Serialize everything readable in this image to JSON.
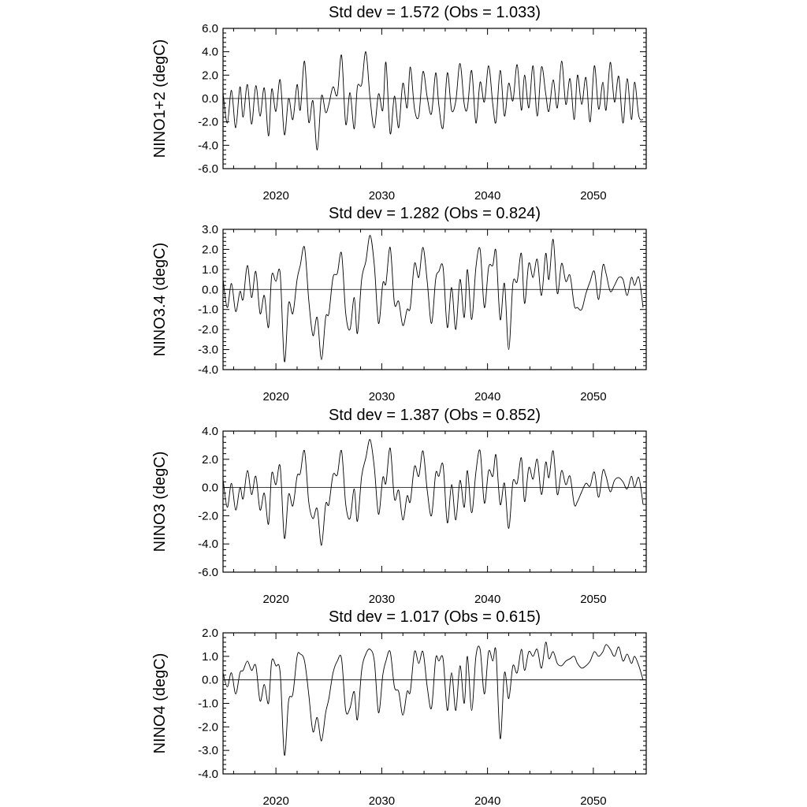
{
  "chart_data": [
    {
      "type": "line",
      "title": "Std dev = 1.572 (Obs = 1.033)",
      "ylabel": "NINO1+2 (degC)",
      "xlim": [
        2015,
        2055
      ],
      "ylim": [
        -6,
        6
      ],
      "yticks": [
        "6.0",
        "4.0",
        "2.0",
        "0.0",
        "-2.0",
        "-4.0",
        "-6.0"
      ],
      "xticks": [
        "2020",
        "2030",
        "2040",
        "2050"
      ],
      "reference_line": 0,
      "x": [
        2015.0,
        2015.4,
        2015.8,
        2016.2,
        2016.6,
        2016.9,
        2017.3,
        2017.7,
        2018.1,
        2018.5,
        2018.9,
        2019.3,
        2019.6,
        2020.0,
        2020.4,
        2020.8,
        2021.2,
        2021.6,
        2022.0,
        2022.3,
        2022.7,
        2023.1,
        2023.5,
        2023.9,
        2024.3,
        2024.7,
        2025.0,
        2025.4,
        2025.8,
        2026.2,
        2026.6,
        2027.0,
        2027.4,
        2027.7,
        2028.1,
        2028.5,
        2028.9,
        2029.3,
        2029.7,
        2030.1,
        2030.4,
        2030.8,
        2031.2,
        2031.6,
        2032.0,
        2032.4,
        2032.7,
        2033.1,
        2033.5,
        2033.9,
        2034.3,
        2034.7,
        2035.1,
        2035.4,
        2035.8,
        2036.2,
        2036.6,
        2037.0,
        2037.4,
        2037.8,
        2038.1,
        2038.5,
        2038.9,
        2039.3,
        2039.7,
        2040.1,
        2040.5,
        2040.8,
        2041.2,
        2041.6,
        2042.0,
        2042.4,
        2042.8,
        2043.2,
        2043.5,
        2043.9,
        2044.3,
        2044.7,
        2045.1,
        2045.5,
        2045.8,
        2046.2,
        2046.6,
        2047.0,
        2047.4,
        2047.8,
        2048.2,
        2048.5,
        2048.9,
        2049.3,
        2049.7,
        2050.1,
        2050.5,
        2050.9,
        2051.2,
        2051.6,
        2052.0,
        2052.4,
        2052.8,
        2053.2,
        2053.6,
        2053.9,
        2054.3,
        2054.7
      ],
      "values": [
        0.5,
        -2.1,
        0.7,
        -2.5,
        1.0,
        -1.6,
        1.2,
        -2.2,
        1.1,
        -1.5,
        0.9,
        -3.2,
        0.8,
        -1.1,
        1.6,
        -3.1,
        0.0,
        -1.8,
        1.2,
        -1.0,
        3.2,
        -2.0,
        -0.2,
        -4.4,
        0.2,
        -1.2,
        -0.5,
        1.0,
        0.3,
        3.7,
        -2.2,
        0.5,
        -2.6,
        1.0,
        1.2,
        4.0,
        0.0,
        -2.5,
        0.4,
        -1.0,
        3.1,
        -3.0,
        0.2,
        -2.5,
        1.3,
        -0.8,
        2.7,
        -0.9,
        -1.5,
        2.3,
        0.1,
        -1.3,
        2.2,
        -0.6,
        -2.5,
        2.2,
        -1.0,
        -0.2,
        3.0,
        -0.5,
        -0.8,
        2.4,
        -2.1,
        1.4,
        -0.3,
        2.8,
        -0.5,
        -2.0,
        2.4,
        -1.5,
        1.3,
        -0.2,
        2.9,
        -1.0,
        2.0,
        -0.8,
        2.8,
        -1.5,
        2.7,
        0.4,
        -1.1,
        1.6,
        -0.8,
        3.2,
        -0.5,
        1.7,
        -1.8,
        2.0,
        -0.5,
        1.8,
        -2.0,
        2.8,
        -0.9,
        1.4,
        -1.0,
        3.1,
        -0.3,
        1.9,
        -2.1,
        1.7,
        -1.8,
        1.4,
        -1.5,
        -1.8
      ]
    },
    {
      "type": "line",
      "title": "Std dev = 1.282 (Obs = 0.824)",
      "ylabel": "NINO3.4 (degC)",
      "xlim": [
        2015,
        2055
      ],
      "ylim": [
        -4,
        3
      ],
      "yticks": [
        "3.0",
        "2.0",
        "1.0",
        "0.0",
        "-1.0",
        "-2.0",
        "-3.0",
        "-4.0"
      ],
      "xticks": [
        "2020",
        "2030",
        "2040",
        "2050"
      ],
      "reference_line": 0,
      "x": [
        2015.0,
        2015.4,
        2015.8,
        2016.2,
        2016.6,
        2016.9,
        2017.3,
        2017.7,
        2018.1,
        2018.5,
        2018.9,
        2019.3,
        2019.6,
        2020.0,
        2020.4,
        2020.8,
        2021.2,
        2021.6,
        2022.0,
        2022.3,
        2022.7,
        2023.1,
        2023.5,
        2023.9,
        2024.3,
        2024.7,
        2025.0,
        2025.4,
        2025.8,
        2026.2,
        2026.6,
        2027.0,
        2027.4,
        2027.7,
        2028.1,
        2028.5,
        2028.9,
        2029.3,
        2029.7,
        2030.1,
        2030.4,
        2030.8,
        2031.2,
        2031.6,
        2032.0,
        2032.4,
        2032.7,
        2033.1,
        2033.5,
        2033.9,
        2034.3,
        2034.7,
        2035.1,
        2035.4,
        2035.8,
        2036.2,
        2036.6,
        2037.0,
        2037.4,
        2037.8,
        2038.1,
        2038.5,
        2038.9,
        2039.3,
        2039.7,
        2040.1,
        2040.5,
        2040.8,
        2041.2,
        2041.6,
        2042.0,
        2042.4,
        2042.8,
        2043.2,
        2043.5,
        2043.9,
        2044.3,
        2044.7,
        2045.1,
        2045.5,
        2045.8,
        2046.2,
        2046.6,
        2047.0,
        2047.4,
        2047.8,
        2048.2,
        2048.5,
        2048.9,
        2049.3,
        2049.7,
        2050.1,
        2050.5,
        2050.9,
        2051.2,
        2051.6,
        2052.0,
        2052.4,
        2052.8,
        2053.2,
        2053.6,
        2053.9,
        2054.3,
        2054.7
      ],
      "values": [
        0.5,
        -0.9,
        0.3,
        -1.1,
        -0.1,
        -0.5,
        1.2,
        -0.4,
        0.9,
        -1.2,
        -0.3,
        -1.9,
        0.7,
        0.4,
        0.8,
        -3.6,
        -0.7,
        -1.2,
        0.5,
        1.2,
        2.1,
        -0.5,
        -2.3,
        -1.4,
        -3.5,
        -1.4,
        -1.2,
        0.6,
        0.8,
        1.8,
        -1.2,
        -2.0,
        -0.4,
        -2.2,
        0.5,
        1.4,
        2.7,
        1.2,
        -1.7,
        0.3,
        0.3,
        2.1,
        -0.7,
        -0.6,
        -1.8,
        -1.0,
        -0.9,
        1.3,
        0.6,
        2.1,
        0.4,
        -1.7,
        0.5,
        0.9,
        1.1,
        -1.9,
        0.1,
        -2.0,
        0.5,
        -1.4,
        1.0,
        -1.5,
        1.1,
        2.0,
        -0.9,
        1.1,
        1.2,
        1.9,
        -1.5,
        0.3,
        -3.0,
        0.3,
        0.4,
        1.8,
        -0.7,
        1.3,
        0.6,
        1.5,
        -0.3,
        1.8,
        0.5,
        2.5,
        -0.2,
        1.3,
        0.4,
        0.7,
        -0.8,
        -0.9,
        -1.0,
        -0.2,
        0.4,
        0.9,
        -0.5,
        1.2,
        0.8,
        -0.1,
        0.2,
        0.6,
        0.5,
        -0.3,
        0.6,
        0.2,
        0.6,
        -0.9
      ]
    },
    {
      "type": "line",
      "title": "Std dev = 1.387 (Obs = 0.852)",
      "ylabel": "NINO3 (degC)",
      "xlim": [
        2015,
        2055
      ],
      "ylim": [
        -6,
        4
      ],
      "yticks": [
        "4.0",
        "2.0",
        "0.0",
        "-2.0",
        "-4.0",
        "-6.0"
      ],
      "xticks": [
        "2020",
        "2030",
        "2040",
        "2050"
      ],
      "reference_line": 0,
      "x": [
        2015.0,
        2015.4,
        2015.8,
        2016.2,
        2016.6,
        2016.9,
        2017.3,
        2017.7,
        2018.1,
        2018.5,
        2018.9,
        2019.3,
        2019.6,
        2020.0,
        2020.4,
        2020.8,
        2021.2,
        2021.6,
        2022.0,
        2022.3,
        2022.7,
        2023.1,
        2023.5,
        2023.9,
        2024.3,
        2024.7,
        2025.0,
        2025.4,
        2025.8,
        2026.2,
        2026.6,
        2027.0,
        2027.4,
        2027.7,
        2028.1,
        2028.5,
        2028.9,
        2029.3,
        2029.7,
        2030.1,
        2030.4,
        2030.8,
        2031.2,
        2031.6,
        2032.0,
        2032.4,
        2032.7,
        2033.1,
        2033.5,
        2033.9,
        2034.3,
        2034.7,
        2035.1,
        2035.4,
        2035.8,
        2036.2,
        2036.6,
        2037.0,
        2037.4,
        2037.8,
        2038.1,
        2038.5,
        2038.9,
        2039.3,
        2039.7,
        2040.1,
        2040.5,
        2040.8,
        2041.2,
        2041.6,
        2042.0,
        2042.4,
        2042.8,
        2043.2,
        2043.5,
        2043.9,
        2044.3,
        2044.7,
        2045.1,
        2045.5,
        2045.8,
        2046.2,
        2046.6,
        2047.0,
        2047.4,
        2047.8,
        2048.2,
        2048.5,
        2048.9,
        2049.3,
        2049.7,
        2050.1,
        2050.5,
        2050.9,
        2051.2,
        2051.6,
        2052.0,
        2052.4,
        2052.8,
        2053.2,
        2053.6,
        2053.9,
        2054.3,
        2054.7
      ],
      "values": [
        0.6,
        -1.4,
        0.3,
        -1.6,
        0.0,
        -0.8,
        1.2,
        -0.5,
        0.8,
        -1.6,
        -0.4,
        -2.6,
        1.0,
        0.2,
        1.5,
        -3.6,
        -0.5,
        -1.3,
        0.8,
        1.0,
        2.6,
        -1.0,
        -2.2,
        -1.5,
        -4.1,
        -1.2,
        -1.2,
        0.9,
        0.9,
        2.6,
        -1.2,
        -2.2,
        -0.1,
        -2.4,
        0.8,
        2.1,
        3.4,
        1.4,
        -1.9,
        0.7,
        0.3,
        2.8,
        -0.8,
        -0.2,
        -2.3,
        -0.6,
        -1.0,
        1.5,
        0.8,
        2.6,
        -0.2,
        -2.0,
        1.0,
        0.8,
        1.6,
        -2.5,
        0.2,
        -2.3,
        0.5,
        -1.4,
        1.2,
        -1.8,
        1.1,
        2.6,
        -1.1,
        1.2,
        0.8,
        2.3,
        -1.2,
        0.3,
        -2.9,
        0.4,
        0.3,
        2.1,
        -1.0,
        1.4,
        0.6,
        2.0,
        -0.5,
        1.8,
        0.7,
        2.6,
        -0.5,
        1.2,
        0.2,
        0.8,
        -1.2,
        -1.0,
        -0.3,
        0.3,
        0.1,
        1.1,
        -0.7,
        1.2,
        0.8,
        -0.3,
        0.5,
        0.7,
        0.4,
        -0.1,
        0.8,
        0.0,
        0.7,
        -1.2
      ]
    },
    {
      "type": "line",
      "title": "Std dev = 1.017 (Obs = 0.615)",
      "ylabel": "NINO4 (degC)",
      "xlim": [
        2015,
        2055
      ],
      "ylim": [
        -4,
        2
      ],
      "yticks": [
        "2.0",
        "1.0",
        "0.0",
        "-1.0",
        "-2.0",
        "-3.0",
        "-4.0"
      ],
      "xticks": [
        "2020",
        "2030",
        "2040",
        "2050"
      ],
      "reference_line": 0,
      "x": [
        2015.0,
        2015.4,
        2015.8,
        2016.2,
        2016.6,
        2016.9,
        2017.3,
        2017.7,
        2018.1,
        2018.5,
        2018.9,
        2019.3,
        2019.6,
        2020.0,
        2020.4,
        2020.8,
        2021.2,
        2021.6,
        2022.0,
        2022.3,
        2022.7,
        2023.1,
        2023.5,
        2023.9,
        2024.3,
        2024.7,
        2025.0,
        2025.4,
        2025.8,
        2026.2,
        2026.6,
        2027.0,
        2027.4,
        2027.7,
        2028.1,
        2028.5,
        2028.9,
        2029.3,
        2029.7,
        2030.1,
        2030.4,
        2030.8,
        2031.2,
        2031.6,
        2032.0,
        2032.4,
        2032.7,
        2033.1,
        2033.5,
        2033.9,
        2034.3,
        2034.7,
        2035.1,
        2035.4,
        2035.8,
        2036.2,
        2036.6,
        2037.0,
        2037.4,
        2037.8,
        2038.1,
        2038.5,
        2038.9,
        2039.3,
        2039.7,
        2040.1,
        2040.5,
        2040.8,
        2041.2,
        2041.6,
        2042.0,
        2042.4,
        2042.8,
        2043.2,
        2043.5,
        2043.9,
        2044.3,
        2044.7,
        2045.1,
        2045.5,
        2045.8,
        2046.2,
        2046.6,
        2047.0,
        2047.4,
        2047.8,
        2048.2,
        2048.5,
        2048.9,
        2049.3,
        2049.7,
        2050.1,
        2050.5,
        2050.9,
        2051.2,
        2051.6,
        2052.0,
        2052.4,
        2052.8,
        2053.2,
        2053.6,
        2053.9,
        2054.3,
        2054.7
      ],
      "values": [
        0.3,
        -0.3,
        0.3,
        -0.6,
        0.3,
        0.4,
        0.8,
        0.4,
        0.6,
        -0.9,
        -0.2,
        -1.0,
        0.8,
        0.6,
        0.3,
        -3.2,
        -0.9,
        -0.6,
        1.0,
        1.1,
        0.8,
        -0.6,
        -2.2,
        -1.6,
        -2.6,
        -1.4,
        -0.8,
        0.3,
        0.8,
        0.9,
        -1.3,
        -1.2,
        -0.5,
        -1.7,
        0.4,
        1.1,
        1.3,
        0.8,
        -1.4,
        0.2,
        0.8,
        1.2,
        -0.3,
        -0.5,
        -1.5,
        -0.5,
        -0.5,
        1.2,
        0.7,
        1.2,
        -0.3,
        -1.2,
        0.9,
        0.8,
        0.9,
        -1.3,
        0.3,
        -1.3,
        0.6,
        -1.0,
        1.0,
        -1.3,
        1.0,
        1.3,
        -0.6,
        1.2,
        0.8,
        1.2,
        -2.5,
        0.3,
        -0.8,
        0.6,
        0.3,
        1.3,
        0.4,
        1.2,
        1.0,
        1.3,
        0.5,
        1.6,
        0.9,
        1.2,
        0.7,
        0.6,
        0.8,
        0.9,
        1.0,
        0.7,
        0.5,
        0.6,
        0.8,
        1.2,
        1.0,
        1.2,
        1.5,
        1.3,
        1.0,
        1.4,
        0.8,
        1.1,
        0.7,
        1.0,
        0.6,
        0.0
      ]
    }
  ]
}
